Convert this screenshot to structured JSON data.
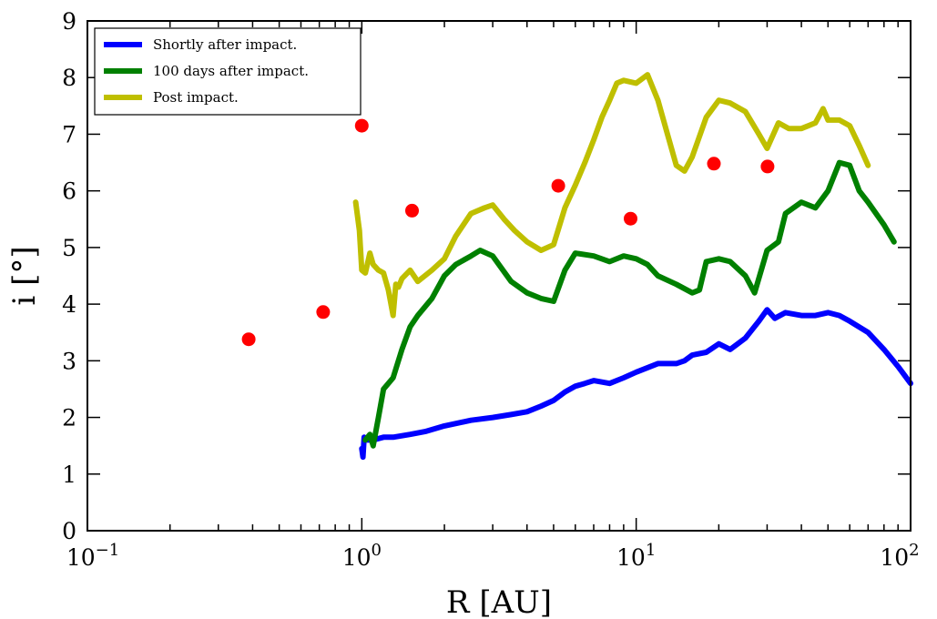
{
  "chart_data": {
    "type": "line",
    "xscale": "log",
    "xlim": [
      0.1,
      100
    ],
    "ylim": [
      0,
      9
    ],
    "xlabel": "R [AU]",
    "ylabel": "i [°]",
    "grid": false,
    "legend_position": "top-left",
    "x_major_ticks": [
      {
        "value": 0.1,
        "base": "10",
        "exp": "−1"
      },
      {
        "value": 1,
        "base": "10",
        "exp": "0"
      },
      {
        "value": 10,
        "base": "10",
        "exp": "1"
      },
      {
        "value": 100,
        "base": "10",
        "exp": "2"
      }
    ],
    "y_ticks": [
      {
        "value": 0,
        "label": "0"
      },
      {
        "value": 1,
        "label": "1"
      },
      {
        "value": 2,
        "label": "2"
      },
      {
        "value": 3,
        "label": "3"
      },
      {
        "value": 4,
        "label": "4"
      },
      {
        "value": 5,
        "label": "5"
      },
      {
        "value": 6,
        "label": "6"
      },
      {
        "value": 7,
        "label": "7"
      },
      {
        "value": 8,
        "label": "8"
      },
      {
        "value": 9,
        "label": "9"
      }
    ],
    "series": [
      {
        "name": "Shortly after impact.",
        "color": "#0000ff",
        "x": [
          1.0,
          1.01,
          1.02,
          1.05,
          1.1,
          1.2,
          1.3,
          1.5,
          1.7,
          2.0,
          2.5,
          3.0,
          3.5,
          4.0,
          4.5,
          5.0,
          5.5,
          6.0,
          6.5,
          7.0,
          8.0,
          9.0,
          10.0,
          12.0,
          14.0,
          15.0,
          16.0,
          18.0,
          20.0,
          22.0,
          25.0,
          28.0,
          30.0,
          32.0,
          35.0,
          40.0,
          45.0,
          50.0,
          55.0,
          60.0,
          70.0,
          80.0,
          90.0,
          100.0
        ],
        "y": [
          1.45,
          1.3,
          1.65,
          1.6,
          1.6,
          1.65,
          1.65,
          1.7,
          1.75,
          1.85,
          1.95,
          2.0,
          2.05,
          2.1,
          2.2,
          2.3,
          2.45,
          2.55,
          2.6,
          2.65,
          2.6,
          2.7,
          2.8,
          2.95,
          2.95,
          3.0,
          3.1,
          3.15,
          3.3,
          3.2,
          3.4,
          3.7,
          3.9,
          3.75,
          3.85,
          3.8,
          3.8,
          3.85,
          3.8,
          3.7,
          3.5,
          3.2,
          2.9,
          2.6
        ]
      },
      {
        "name": "100 days after impact.",
        "color": "#008000",
        "x": [
          1.03,
          1.07,
          1.1,
          1.15,
          1.2,
          1.25,
          1.3,
          1.4,
          1.5,
          1.6,
          1.8,
          2.0,
          2.2,
          2.5,
          2.7,
          3.0,
          3.5,
          4.0,
          4.5,
          5.0,
          5.5,
          6.0,
          7.0,
          8.0,
          9.0,
          10.0,
          11.0,
          12.0,
          14.0,
          16.0,
          17.0,
          18.0,
          20.0,
          22.0,
          25.0,
          27.0,
          30.0,
          33.0,
          35.0,
          40.0,
          45.0,
          50.0,
          55.0,
          60.0,
          65.0,
          70.0,
          80.0,
          87.0
        ],
        "y": [
          1.6,
          1.7,
          1.5,
          2.0,
          2.5,
          2.6,
          2.7,
          3.2,
          3.6,
          3.8,
          4.1,
          4.5,
          4.7,
          4.85,
          4.95,
          4.85,
          4.4,
          4.2,
          4.1,
          4.05,
          4.6,
          4.9,
          4.85,
          4.75,
          4.85,
          4.8,
          4.7,
          4.5,
          4.35,
          4.2,
          4.25,
          4.75,
          4.8,
          4.75,
          4.5,
          4.2,
          4.95,
          5.1,
          5.6,
          5.8,
          5.7,
          6.0,
          6.5,
          6.45,
          6.0,
          5.8,
          5.4,
          5.1
        ]
      },
      {
        "name": "Post impact.",
        "color": "#bfbf00",
        "x": [
          0.95,
          0.98,
          1.0,
          1.03,
          1.07,
          1.1,
          1.15,
          1.2,
          1.25,
          1.3,
          1.33,
          1.36,
          1.4,
          1.5,
          1.6,
          1.8,
          2.0,
          2.2,
          2.5,
          2.8,
          3.0,
          3.3,
          3.6,
          4.0,
          4.5,
          5.0,
          5.5,
          6.0,
          6.5,
          7.0,
          7.5,
          8.0,
          8.5,
          9.0,
          10.0,
          11.0,
          12.0,
          13.0,
          14.0,
          15.0,
          16.0,
          18.0,
          20.0,
          22.0,
          25.0,
          28.0,
          30.0,
          33.0,
          36.0,
          40.0,
          45.0,
          48.0,
          50.0,
          55.0,
          60.0,
          65.0,
          70.0
        ],
        "y": [
          5.8,
          5.3,
          4.6,
          4.55,
          4.9,
          4.7,
          4.6,
          4.55,
          4.25,
          3.8,
          4.35,
          4.3,
          4.45,
          4.6,
          4.4,
          4.6,
          4.8,
          5.2,
          5.6,
          5.7,
          5.75,
          5.5,
          5.3,
          5.1,
          4.95,
          5.05,
          5.7,
          6.1,
          6.5,
          6.9,
          7.3,
          7.6,
          7.9,
          7.95,
          7.9,
          8.05,
          7.6,
          7.0,
          6.45,
          6.35,
          6.6,
          7.3,
          7.6,
          7.55,
          7.4,
          7.0,
          6.75,
          7.2,
          7.1,
          7.1,
          7.2,
          7.45,
          7.25,
          7.25,
          7.15,
          6.8,
          6.45
        ]
      },
      {
        "name": "",
        "kind": "scatter",
        "color": "#ff0000",
        "x": [
          0.387,
          0.723,
          1.0,
          1.524,
          5.2,
          9.54,
          19.2,
          30.1
        ],
        "y": [
          3.38,
          3.86,
          7.15,
          5.65,
          6.09,
          5.51,
          6.48,
          6.43
        ]
      }
    ]
  }
}
